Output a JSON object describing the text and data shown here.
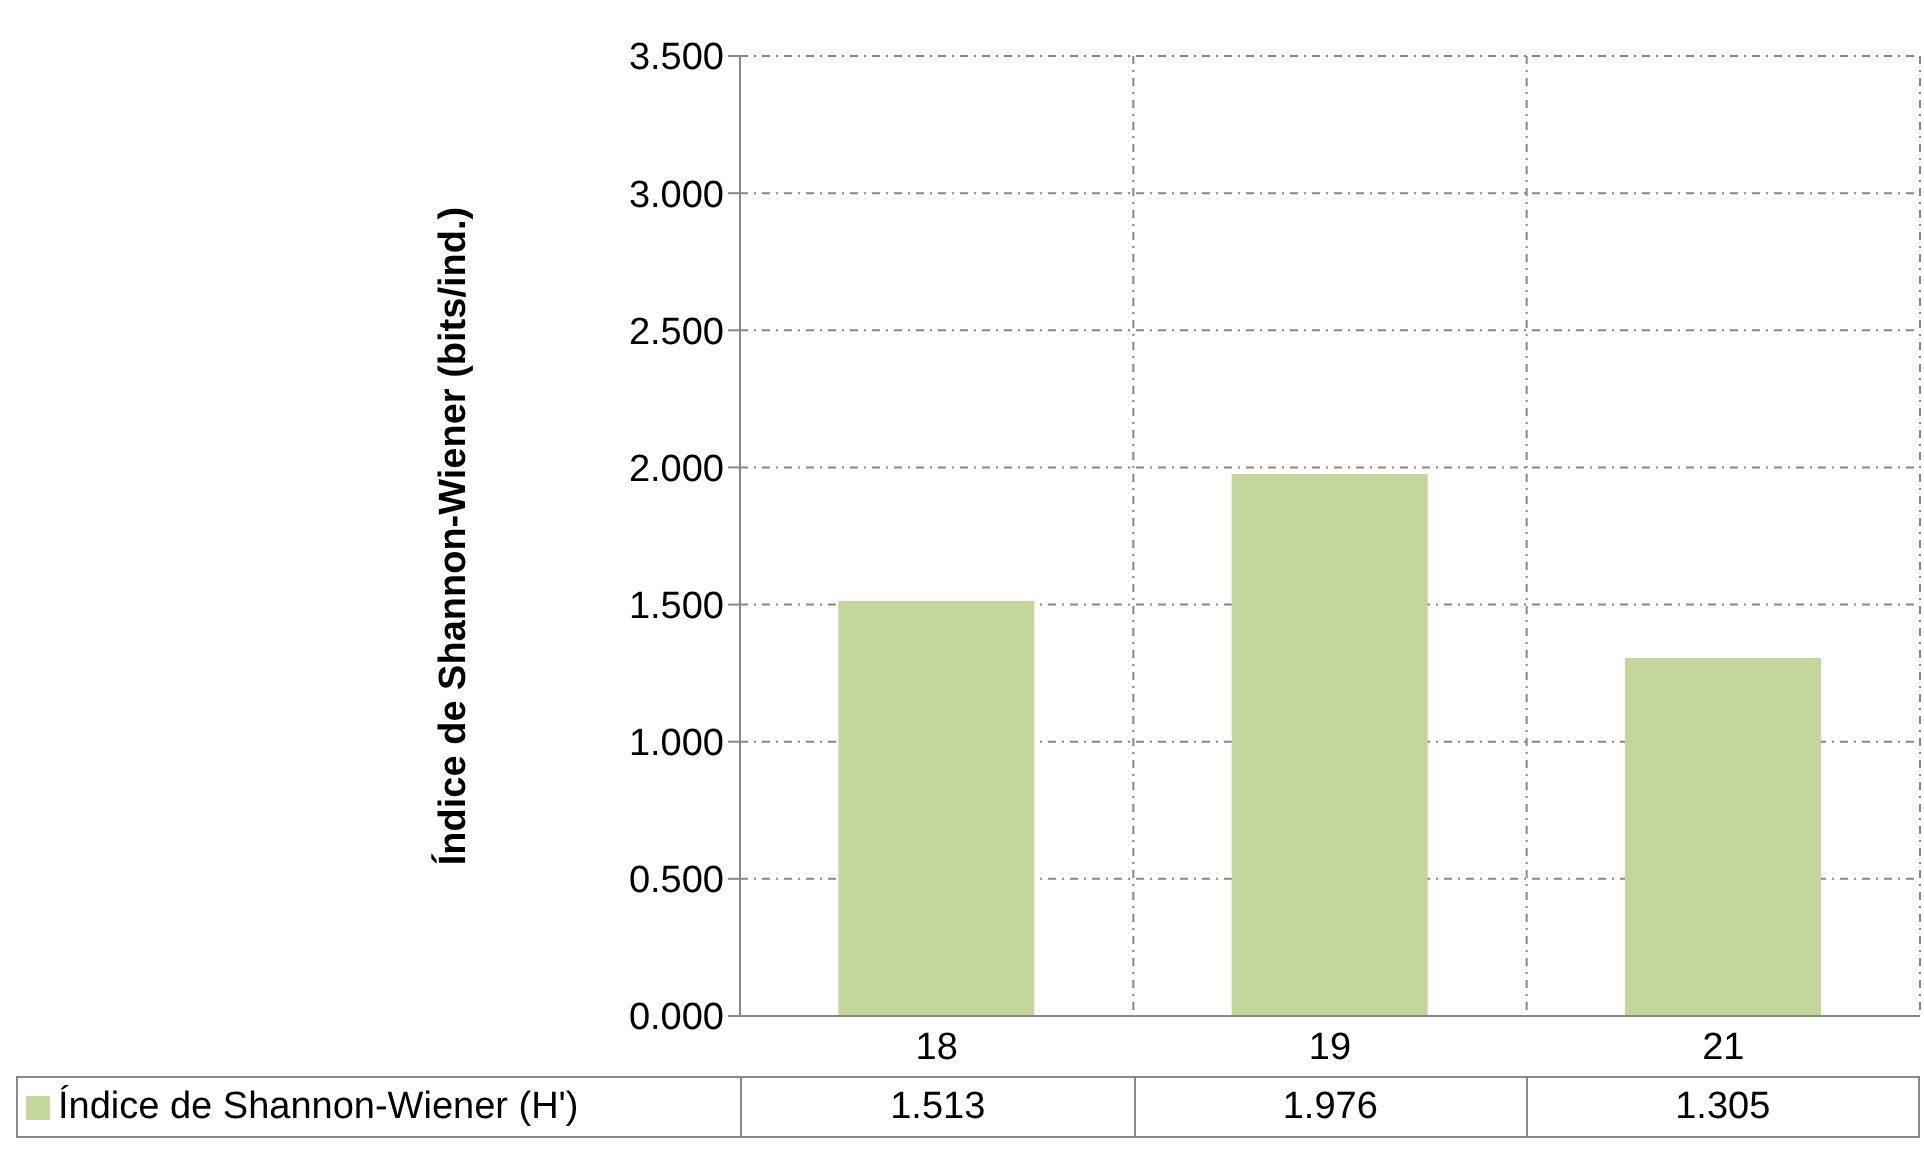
{
  "chart_data": {
    "type": "bar",
    "ylabel": "Índice de Shannon-Wiener (bits/ind.)",
    "categories": [
      "18",
      "19",
      "21"
    ],
    "series": [
      {
        "name": "Índice de Shannon-Wiener (H')",
        "color": "#c4d79b",
        "values": [
          1.513,
          1.976,
          1.305
        ]
      }
    ],
    "ylim": [
      0,
      3.5
    ],
    "yticks": [
      {
        "value": 0,
        "label": "0.000"
      },
      {
        "value": 0.5,
        "label": "0.500"
      },
      {
        "value": 1,
        "label": "1.000"
      },
      {
        "value": 1.5,
        "label": "1.500"
      },
      {
        "value": 2,
        "label": "2.000"
      },
      {
        "value": 2.5,
        "label": "2.500"
      },
      {
        "value": 3,
        "label": "3.000"
      },
      {
        "value": 3.5,
        "label": "3.500"
      }
    ],
    "grid": true,
    "legend": "bottom",
    "data_labels": true
  }
}
